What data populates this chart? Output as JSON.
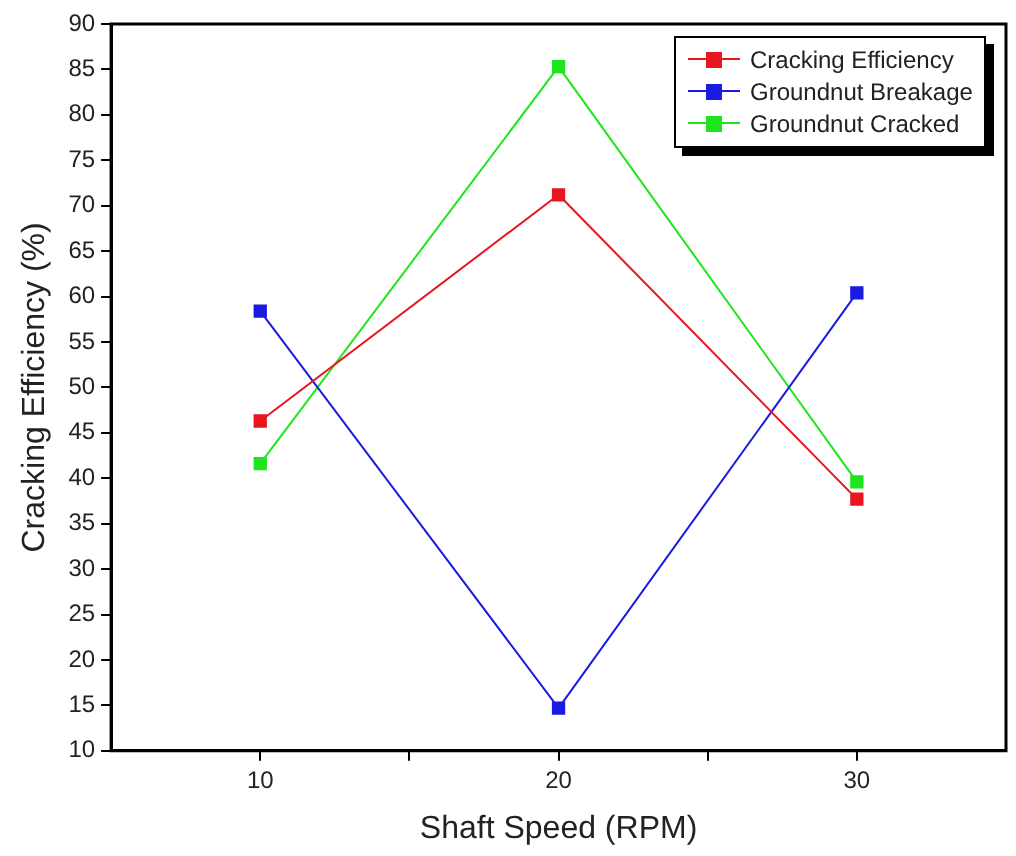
{
  "chart_data": {
    "type": "line",
    "xlabel": "Shaft Speed (RPM)",
    "ylabel": "Cracking Efficiency (%)",
    "x": [
      10,
      20,
      30
    ],
    "series": [
      {
        "name": "Cracking Efficiency",
        "color": "#e8141e",
        "values": [
          46.3,
          71.2,
          37.7
        ]
      },
      {
        "name": "Groundnut Breakage",
        "color": "#1a1ae0",
        "values": [
          58.4,
          14.7,
          60.4
        ]
      },
      {
        "name": "Groundnut Cracked",
        "color": "#1ee61e",
        "values": [
          41.6,
          85.3,
          39.6
        ]
      }
    ],
    "xlim": [
      5,
      35
    ],
    "xticks": [
      10,
      {
        "value": 15,
        "label": null
      },
      20,
      {
        "value": 25,
        "label": null
      },
      30
    ],
    "ylim": [
      10,
      90
    ],
    "yticks": [
      10,
      15,
      20,
      25,
      30,
      35,
      40,
      45,
      50,
      55,
      60,
      65,
      70,
      75,
      80,
      85,
      90
    ],
    "grid": false,
    "legend": "top right",
    "marker": "square",
    "line_style": "solid"
  }
}
